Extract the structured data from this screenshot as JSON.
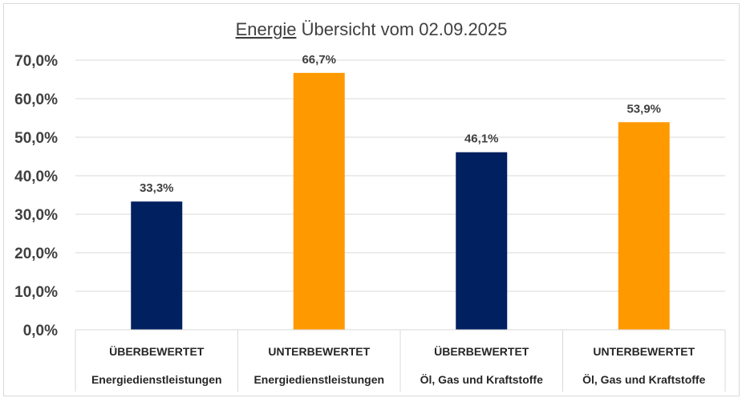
{
  "chart_data": {
    "type": "bar",
    "title_underlined": "Energie",
    "title_rest": " Übersicht vom 02.09.2025",
    "ylim": [
      0,
      70
    ],
    "yticks": [
      0,
      10,
      20,
      30,
      40,
      50,
      60,
      70
    ],
    "ytick_labels": [
      "0,0%",
      "10,0%",
      "20,0%",
      "30,0%",
      "40,0%",
      "50,0%",
      "60,0%",
      "70,0%"
    ],
    "grid": true,
    "categories": [
      {
        "line1": "ÜBERBEWERTET",
        "line2": "Energiedienstleistungen"
      },
      {
        "line1": "UNTERBEWERTET",
        "line2": "Energiedienstleistungen"
      },
      {
        "line1": "ÜBERBEWERTET",
        "line2": "Öl, Gas und Kraftstoffe"
      },
      {
        "line1": "UNTERBEWERTET",
        "line2": "Öl, Gas und Kraftstoffe"
      }
    ],
    "values": [
      33.3,
      66.7,
      46.1,
      53.9
    ],
    "value_labels": [
      "33,3%",
      "66,7%",
      "46,1%",
      "53,9%"
    ],
    "colors": [
      "#002060",
      "#FF9900",
      "#002060",
      "#FF9900"
    ]
  }
}
